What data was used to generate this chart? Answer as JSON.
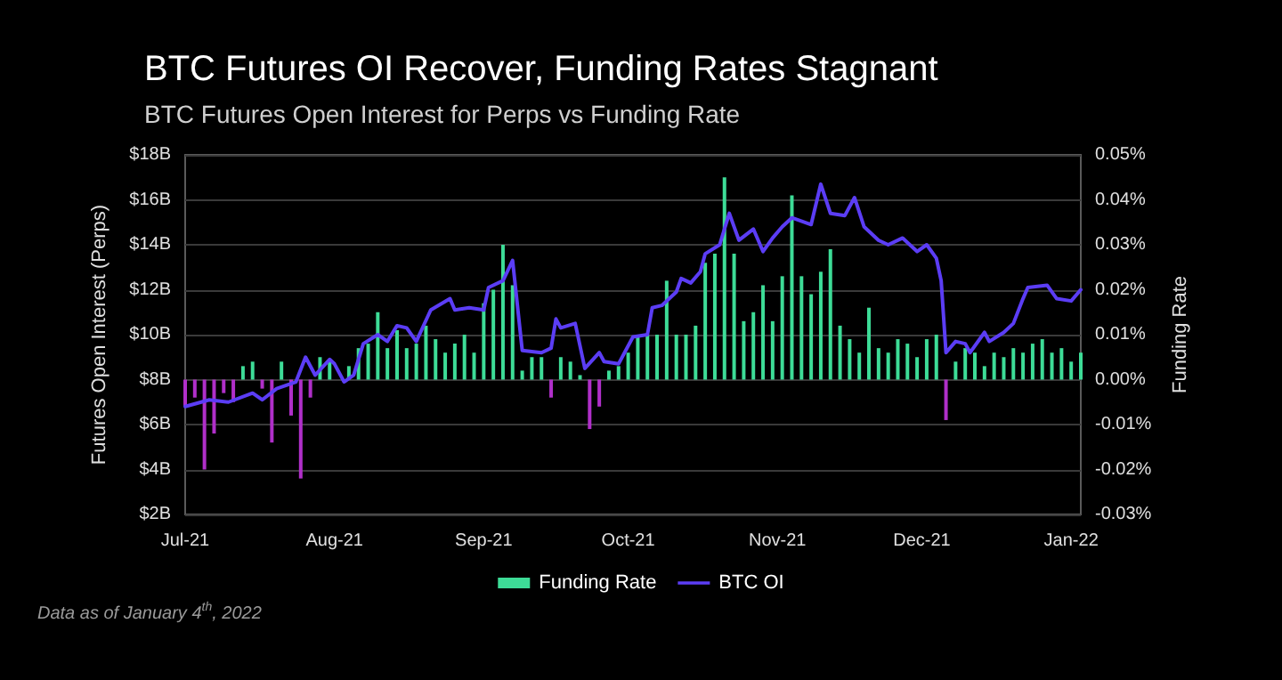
{
  "chart_data": {
    "type": "bar",
    "title": "BTC Futures OI Recover, Funding Rates Stagnant",
    "subtitle": "BTC Futures Open Interest for Perps vs Funding Rate",
    "ylabel": "Futures Open Interest (Perps)",
    "y2label": "Funding Rate",
    "annotations": [
      "Data as of January 4$^{th}$, 2022"
    ],
    "xlim": [
      "2021-07-01",
      "2022-01-03"
    ],
    "xticks": [
      {
        "value": "2021-07-01",
        "label": "Jul-21"
      },
      {
        "value": "2021-08-01",
        "label": "Aug-21"
      },
      {
        "value": "2021-09-01",
        "label": "Sep-21"
      },
      {
        "value": "2021-10-01",
        "label": "Oct-21"
      },
      {
        "value": "2021-11-01",
        "label": "Nov-21"
      },
      {
        "value": "2021-12-01",
        "label": "Dec-21"
      },
      {
        "value": "2022-01-01",
        "label": "Jan-22"
      }
    ],
    "ylim": [
      2,
      18
    ],
    "yticks": [
      {
        "value": 2,
        "label": "$2B"
      },
      {
        "value": 4,
        "label": "$4B"
      },
      {
        "value": 6,
        "label": "$6B"
      },
      {
        "value": 8,
        "label": "$8B"
      },
      {
        "value": 10,
        "label": "$10B"
      },
      {
        "value": 12,
        "label": "$12B"
      },
      {
        "value": 14,
        "label": "$14B"
      },
      {
        "value": 16,
        "label": "$16B"
      },
      {
        "value": 18,
        "label": "$18B"
      }
    ],
    "y2lim": [
      -0.03,
      0.05
    ],
    "y2ticks": [
      {
        "value": -0.03,
        "label": "-0.03%"
      },
      {
        "value": -0.02,
        "label": "-0.02%"
      },
      {
        "value": -0.01,
        "label": "-0.01%"
      },
      {
        "value": 0,
        "label": "0.00%"
      },
      {
        "value": 0.01,
        "label": "0.01%"
      },
      {
        "value": 0.02,
        "label": "0.02%"
      },
      {
        "value": 0.03,
        "label": "0.03%"
      },
      {
        "value": 0.04,
        "label": "0.04%"
      },
      {
        "value": 0.05,
        "label": "0.05%"
      }
    ],
    "grid": "y",
    "legend": "bottom",
    "series": [
      {
        "name": "Funding Rate",
        "axis": "y2",
        "color": "#3ddc97",
        "x": [
          "2021-07-01",
          "2021-07-03",
          "2021-07-05",
          "2021-07-07",
          "2021-07-09",
          "2021-07-11",
          "2021-07-13",
          "2021-07-15",
          "2021-07-17",
          "2021-07-19",
          "2021-07-21",
          "2021-07-23",
          "2021-07-25",
          "2021-07-27",
          "2021-07-29",
          "2021-07-31",
          "2021-08-02",
          "2021-08-04",
          "2021-08-06",
          "2021-08-08",
          "2021-08-10",
          "2021-08-12",
          "2021-08-14",
          "2021-08-16",
          "2021-08-18",
          "2021-08-20",
          "2021-08-22",
          "2021-08-24",
          "2021-08-26",
          "2021-08-28",
          "2021-08-30",
          "2021-09-01",
          "2021-09-03",
          "2021-09-05",
          "2021-09-07",
          "2021-09-09",
          "2021-09-11",
          "2021-09-13",
          "2021-09-15",
          "2021-09-17",
          "2021-09-19",
          "2021-09-21",
          "2021-09-23",
          "2021-09-25",
          "2021-09-27",
          "2021-09-29",
          "2021-10-01",
          "2021-10-03",
          "2021-10-05",
          "2021-10-07",
          "2021-10-09",
          "2021-10-11",
          "2021-10-13",
          "2021-10-15",
          "2021-10-17",
          "2021-10-19",
          "2021-10-21",
          "2021-10-23",
          "2021-10-25",
          "2021-10-27",
          "2021-10-29",
          "2021-10-31",
          "2021-11-02",
          "2021-11-04",
          "2021-11-06",
          "2021-11-08",
          "2021-11-10",
          "2021-11-12",
          "2021-11-14",
          "2021-11-16",
          "2021-11-18",
          "2021-11-20",
          "2021-11-22",
          "2021-11-24",
          "2021-11-26",
          "2021-11-28",
          "2021-11-30",
          "2021-12-02",
          "2021-12-04",
          "2021-12-06",
          "2021-12-08",
          "2021-12-10",
          "2021-12-12",
          "2021-12-14",
          "2021-12-16",
          "2021-12-18",
          "2021-12-20",
          "2021-12-22",
          "2021-12-24",
          "2021-12-26",
          "2021-12-28",
          "2021-12-30",
          "2022-01-01",
          "2022-01-03"
        ],
        "values": [
          -0.006,
          -0.004,
          -0.02,
          -0.012,
          -0.003,
          -0.005,
          0.003,
          0.004,
          -0.002,
          -0.014,
          0.004,
          -0.008,
          -0.022,
          -0.004,
          0.005,
          0.004,
          null,
          0.003,
          0.007,
          0.008,
          0.015,
          0.007,
          0.011,
          0.007,
          0.008,
          0.012,
          0.009,
          0.006,
          0.008,
          0.01,
          0.006,
          0.017,
          0.02,
          0.03,
          0.021,
          0.002,
          0.005,
          0.005,
          -0.004,
          0.005,
          0.004,
          0.001,
          -0.011,
          -0.006,
          0.002,
          0.003,
          0.006,
          0.01,
          0.01,
          0.01,
          0.022,
          0.01,
          0.01,
          0.012,
          0.026,
          0.028,
          0.045,
          0.028,
          0.013,
          0.015,
          0.021,
          0.013,
          0.023,
          0.041,
          0.023,
          0.019,
          0.024,
          0.029,
          0.012,
          0.009,
          0.006,
          0.016,
          0.007,
          0.006,
          0.009,
          0.008,
          0.005,
          0.009,
          0.01,
          -0.009,
          0.004,
          0.007,
          0.006,
          0.003,
          0.006,
          0.005,
          0.007,
          0.006,
          0.008,
          0.009,
          0.006,
          0.007,
          0.004,
          0.006
        ],
        "colors": [
          "#b02fc9",
          "#b02fc9",
          "#b02fc9",
          "#b02fc9",
          "#b02fc9",
          "#b02fc9",
          "#3ddc97",
          "#3ddc97",
          "#b02fc9",
          "#b02fc9",
          "#3ddc97",
          "#b02fc9",
          "#b02fc9",
          "#b02fc9",
          "#3ddc97",
          "#3ddc97",
          "#3ddc97",
          "#3ddc97",
          "#3ddc97",
          "#3ddc97",
          "#3ddc97",
          "#3ddc97",
          "#3ddc97",
          "#3ddc97",
          "#3ddc97",
          "#3ddc97",
          "#3ddc97",
          "#3ddc97",
          "#3ddc97",
          "#3ddc97",
          "#3ddc97",
          "#3ddc97",
          "#3ddc97",
          "#3ddc97",
          "#3ddc97",
          "#3ddc97",
          "#3ddc97",
          "#3ddc97",
          "#b02fc9",
          "#3ddc97",
          "#3ddc97",
          "#3ddc97",
          "#b02fc9",
          "#b02fc9",
          "#3ddc97",
          "#3ddc97",
          "#3ddc97",
          "#3ddc97",
          "#3ddc97",
          "#3ddc97",
          "#3ddc97",
          "#3ddc97",
          "#3ddc97",
          "#3ddc97",
          "#3ddc97",
          "#3ddc97",
          "#3ddc97",
          "#3ddc97",
          "#3ddc97",
          "#3ddc97",
          "#3ddc97",
          "#3ddc97",
          "#3ddc97",
          "#3ddc97",
          "#3ddc97",
          "#3ddc97",
          "#3ddc97",
          "#3ddc97",
          "#3ddc97",
          "#3ddc97",
          "#3ddc97",
          "#3ddc97",
          "#3ddc97",
          "#3ddc97",
          "#3ddc97",
          "#3ddc97",
          "#3ddc97",
          "#3ddc97",
          "#3ddc97",
          "#b02fc9",
          "#3ddc97",
          "#3ddc97",
          "#3ddc97",
          "#3ddc97",
          "#3ddc97",
          "#3ddc97",
          "#3ddc97",
          "#3ddc97",
          "#3ddc97",
          "#3ddc97",
          "#3ddc97",
          "#3ddc97",
          "#3ddc97",
          "#3ddc97"
        ]
      },
      {
        "name": "BTC OI",
        "type": "line",
        "color": "#5b3df5",
        "x": [
          "2021-07-01",
          "2021-07-06",
          "2021-07-10",
          "2021-07-15",
          "2021-07-17",
          "2021-07-20",
          "2021-07-24",
          "2021-07-26",
          "2021-07-28",
          "2021-07-31",
          "2021-08-01",
          "2021-08-03",
          "2021-08-05",
          "2021-08-07",
          "2021-08-10",
          "2021-08-12",
          "2021-08-14",
          "2021-08-16",
          "2021-08-18",
          "2021-08-21",
          "2021-08-25",
          "2021-08-26",
          "2021-08-29",
          "2021-09-01",
          "2021-09-02",
          "2021-09-05",
          "2021-09-07",
          "2021-09-09",
          "2021-09-13",
          "2021-09-15",
          "2021-09-16",
          "2021-09-17",
          "2021-09-20",
          "2021-09-22",
          "2021-09-25",
          "2021-09-26",
          "2021-09-29",
          "2021-09-30",
          "2021-10-02",
          "2021-10-05",
          "2021-10-06",
          "2021-10-08",
          "2021-10-11",
          "2021-10-12",
          "2021-10-14",
          "2021-10-16",
          "2021-10-17",
          "2021-10-20",
          "2021-10-22",
          "2021-10-24",
          "2021-10-27",
          "2021-10-29",
          "2021-10-31",
          "2021-11-02",
          "2021-11-04",
          "2021-11-08",
          "2021-11-10",
          "2021-11-12",
          "2021-11-15",
          "2021-11-17",
          "2021-11-19",
          "2021-11-22",
          "2021-11-24",
          "2021-11-27",
          "2021-11-30",
          "2021-12-02",
          "2021-12-04",
          "2021-12-05",
          "2021-12-06",
          "2021-12-08",
          "2021-12-10",
          "2021-12-11",
          "2021-12-14",
          "2021-12-15",
          "2021-12-18",
          "2021-12-20",
          "2021-12-22",
          "2021-12-23",
          "2021-12-27",
          "2021-12-29",
          "2022-01-01",
          "2022-01-03"
        ],
        "values": [
          6.8,
          7.1,
          7.0,
          7.4,
          7.1,
          7.6,
          7.9,
          9.0,
          8.2,
          8.9,
          8.7,
          7.9,
          8.2,
          9.6,
          10.0,
          9.7,
          10.4,
          10.3,
          9.7,
          11.1,
          11.6,
          11.1,
          11.2,
          11.1,
          12.1,
          12.4,
          13.3,
          9.3,
          9.2,
          9.4,
          10.7,
          10.3,
          10.5,
          8.5,
          9.2,
          8.8,
          8.7,
          9.1,
          9.9,
          10.0,
          11.2,
          11.3,
          11.9,
          12.5,
          12.3,
          12.8,
          13.6,
          14.0,
          15.4,
          14.2,
          14.7,
          13.7,
          14.3,
          14.8,
          15.2,
          14.9,
          16.7,
          15.4,
          15.3,
          16.1,
          14.8,
          14.2,
          14.0,
          14.3,
          13.7,
          14.0,
          13.4,
          12.4,
          9.2,
          9.7,
          9.6,
          9.2,
          10.1,
          9.7,
          10.1,
          10.5,
          11.6,
          12.1,
          12.2,
          11.6,
          11.5,
          12.0
        ]
      }
    ]
  }
}
